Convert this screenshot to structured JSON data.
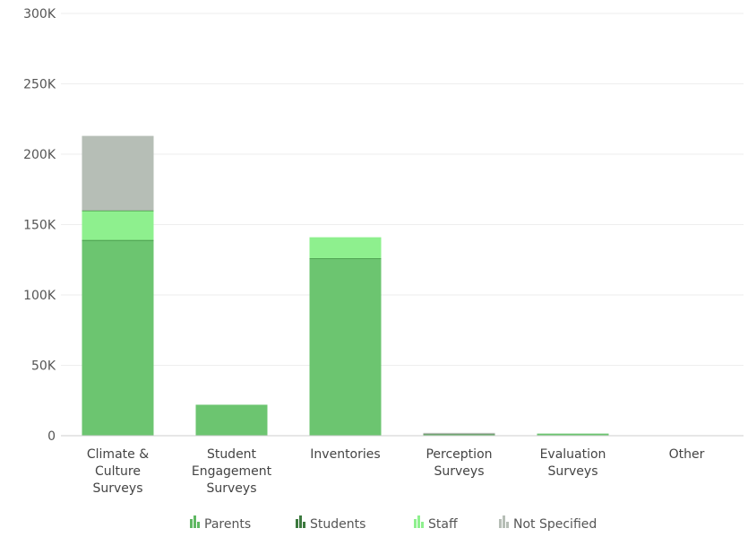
{
  "chart_data": {
    "type": "bar",
    "stacked": true,
    "categories": [
      [
        "Climate &",
        "Culture",
        "Surveys"
      ],
      [
        "Student",
        "Engagement",
        "Surveys"
      ],
      [
        "Inventories"
      ],
      [
        "Perception",
        "Surveys"
      ],
      [
        "Evaluation",
        "Surveys"
      ],
      [
        "Other"
      ]
    ],
    "series": [
      {
        "name": "Parents",
        "color": "#6cc570",
        "values": [
          0,
          0,
          0,
          0,
          0,
          0
        ]
      },
      {
        "name": "Students",
        "color": "#6cc570",
        "values": [
          139000,
          22000,
          126000,
          1000,
          1500,
          0
        ]
      },
      {
        "name": "Staff",
        "color": "#8ef08e",
        "values": [
          21000,
          0,
          15000,
          0,
          0,
          0
        ]
      },
      {
        "name": "Not Specified",
        "color": "#b6beb6",
        "values": [
          53000,
          0,
          0,
          1000,
          0,
          0
        ]
      }
    ],
    "ylim": [
      0,
      300000
    ],
    "yticks": [
      0,
      50000,
      100000,
      150000,
      200000,
      250000,
      300000
    ],
    "ytick_labels": [
      "0",
      "50K",
      "100K",
      "150K",
      "200K",
      "250K",
      "300K"
    ],
    "legend_position": "bottom-center",
    "grid": true,
    "segment_separator_color": "#3d8a3f"
  }
}
